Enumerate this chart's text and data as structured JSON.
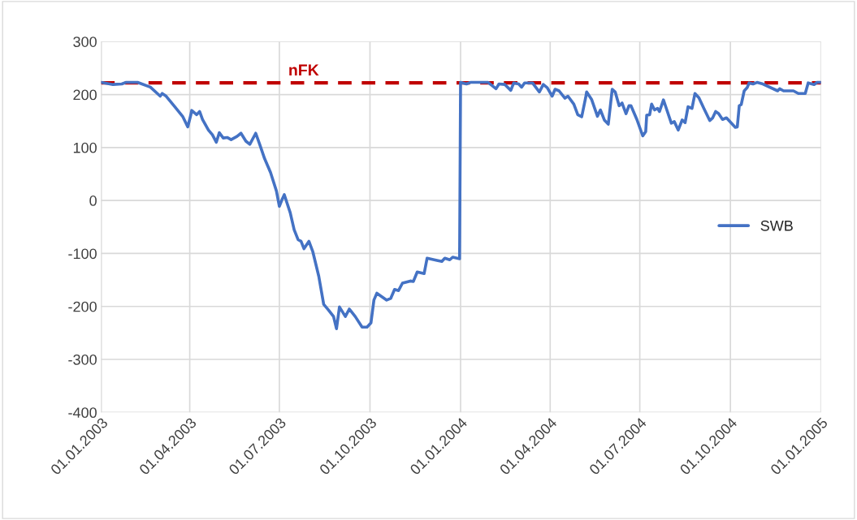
{
  "chart_data": {
    "type": "line",
    "series": [
      {
        "name": "SWB",
        "color": "#4472c4",
        "x": [
          "2003-01-01",
          "2003-01-13",
          "2003-01-22",
          "2003-01-26",
          "2003-02-07",
          "2003-02-20",
          "2003-03-02",
          "2003-03-04",
          "2003-03-08",
          "2003-03-16",
          "2003-03-25",
          "2003-03-30",
          "2003-04-02",
          "2003-04-03",
          "2003-04-08",
          "2003-04-11",
          "2003-04-14",
          "2003-04-20",
          "2003-04-24",
          "2003-04-28",
          "2003-05-01",
          "2003-05-05",
          "2003-05-09",
          "2003-05-13",
          "2003-05-19",
          "2003-05-23",
          "2003-05-28",
          "2003-06-01",
          "2003-06-07",
          "2003-06-11",
          "2003-06-16",
          "2003-06-22",
          "2003-06-28",
          "2003-07-01",
          "2003-07-04",
          "2003-07-06",
          "2003-07-12",
          "2003-07-16",
          "2003-07-20",
          "2003-07-23",
          "2003-07-26",
          "2003-07-31",
          "2003-08-04",
          "2003-08-10",
          "2003-08-15",
          "2003-08-20",
          "2003-08-25",
          "2003-08-28",
          "2003-08-31",
          "2003-09-06",
          "2003-09-10",
          "2003-09-16",
          "2003-09-23",
          "2003-09-28",
          "2003-10-02",
          "2003-10-05",
          "2003-10-08",
          "2003-10-18",
          "2003-10-22",
          "2003-10-26",
          "2003-10-30",
          "2003-11-03",
          "2003-11-11",
          "2003-11-14",
          "2003-11-18",
          "2003-11-25",
          "2003-11-28",
          "2003-12-08",
          "2003-12-13",
          "2003-12-16",
          "2003-12-21",
          "2003-12-24",
          "2003-12-31",
          "2004-01-01",
          "2004-01-03",
          "2004-01-07",
          "2004-01-11",
          "2004-01-29",
          "2004-02-06",
          "2004-02-09",
          "2004-02-15",
          "2004-02-21",
          "2004-02-24",
          "2004-02-29",
          "2004-03-03",
          "2004-03-06",
          "2004-03-14",
          "2004-03-21",
          "2004-03-25",
          "2004-03-29",
          "2004-04-03",
          "2004-04-06",
          "2004-04-10",
          "2004-04-16",
          "2004-04-19",
          "2004-04-25",
          "2004-04-29",
          "2004-05-03",
          "2004-05-07",
          "2004-05-08",
          "2004-05-13",
          "2004-05-19",
          "2004-05-22",
          "2004-05-26",
          "2004-05-30",
          "2004-06-03",
          "2004-06-06",
          "2004-06-10",
          "2004-06-13",
          "2004-06-17",
          "2004-06-20",
          "2004-06-22",
          "2004-06-28",
          "2004-07-04",
          "2004-07-07",
          "2004-07-08",
          "2004-07-11",
          "2004-07-13",
          "2004-07-16",
          "2004-07-19",
          "2004-07-21",
          "2004-07-25",
          "2004-07-27",
          "2004-08-02",
          "2004-08-05",
          "2004-08-09",
          "2004-08-13",
          "2004-08-16",
          "2004-08-19",
          "2004-08-23",
          "2004-08-26",
          "2004-08-30",
          "2004-09-04",
          "2004-09-10",
          "2004-09-13",
          "2004-09-16",
          "2004-09-19",
          "2004-09-23",
          "2004-09-27",
          "2004-10-01",
          "2004-10-06",
          "2004-10-08",
          "2004-10-10",
          "2004-10-12",
          "2004-10-15",
          "2004-10-18",
          "2004-10-20",
          "2004-10-24",
          "2004-10-28",
          "2004-11-03",
          "2004-11-18",
          "2004-11-20",
          "2004-11-24",
          "2004-12-04",
          "2004-12-09",
          "2004-12-16",
          "2004-12-19",
          "2004-12-25",
          "2004-12-28",
          "2005-01-01"
        ],
        "values": [
          223,
          219,
          220,
          223,
          223,
          214,
          197,
          202,
          197,
          179,
          158,
          139,
          161,
          170,
          162,
          168,
          153,
          133,
          124,
          110,
          128,
          118,
          119,
          115,
          121,
          127,
          112,
          106,
          127,
          106,
          79,
          53,
          18,
          -11,
          3,
          11,
          -23,
          -55,
          -74,
          -77,
          -91,
          -77,
          -97,
          -143,
          -196,
          -207,
          -219,
          -242,
          -201,
          -219,
          -205,
          -219,
          -239,
          -239,
          -231,
          -188,
          -175,
          -188,
          -185,
          -168,
          -170,
          -156,
          -152,
          -153,
          -135,
          -138,
          -109,
          -113,
          -115,
          -109,
          -112,
          -107,
          -110,
          223,
          222,
          220,
          223,
          223,
          211,
          220,
          219,
          208,
          222,
          220,
          214,
          222,
          222,
          205,
          219,
          213,
          197,
          210,
          207,
          193,
          197,
          182,
          162,
          158,
          194,
          205,
          191,
          159,
          171,
          152,
          144,
          210,
          205,
          179,
          184,
          164,
          179,
          179,
          153,
          122,
          130,
          161,
          162,
          182,
          171,
          174,
          168,
          190,
          179,
          146,
          149,
          133,
          152,
          147,
          177,
          174,
          202,
          194,
          174,
          151,
          156,
          168,
          164,
          153,
          156,
          148,
          138,
          139,
          179,
          181,
          207,
          213,
          222,
          220,
          223,
          220,
          207,
          211,
          207,
          207,
          202,
          202,
          222,
          219,
          223,
          223
        ]
      }
    ],
    "ref_lines": [
      {
        "axis": "y",
        "value": 222,
        "label": "nFK",
        "color": "#c00000",
        "line_style": "dashed"
      }
    ],
    "xlim": [
      "2003-01-01",
      "2005-01-01"
    ],
    "xticks": [
      {
        "value": "2003-01-01",
        "label": "01.01.2003"
      },
      {
        "value": "2003-04-01",
        "label": "01.04.2003"
      },
      {
        "value": "2003-07-01",
        "label": "01.07.2003"
      },
      {
        "value": "2003-10-01",
        "label": "01.10.2003"
      },
      {
        "value": "2004-01-01",
        "label": "01.01.2004"
      },
      {
        "value": "2004-04-01",
        "label": "01.04.2004"
      },
      {
        "value": "2004-07-01",
        "label": "01.07.2004"
      },
      {
        "value": "2004-10-01",
        "label": "01.10.2004"
      },
      {
        "value": "2005-01-01",
        "label": "01.01.2005"
      }
    ],
    "ylim": [
      -400,
      300
    ],
    "yticks": [
      -400,
      -300,
      -200,
      -100,
      0,
      100,
      200,
      300
    ],
    "grid": true,
    "legend": "right",
    "marker": "none",
    "line_style": "solid"
  }
}
